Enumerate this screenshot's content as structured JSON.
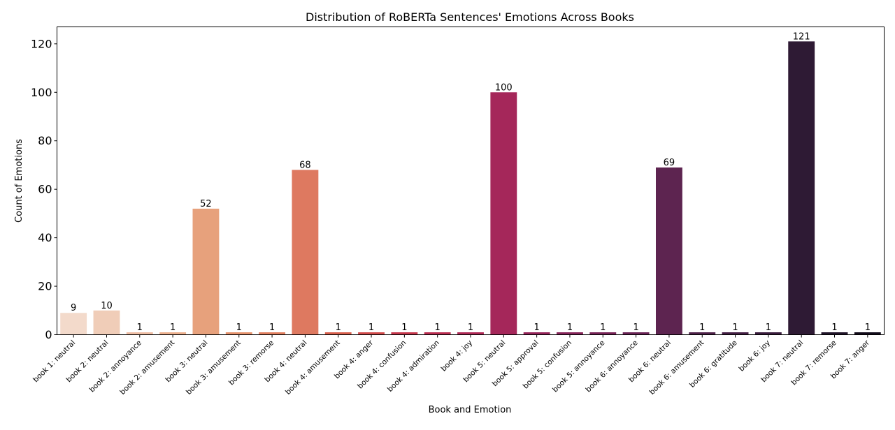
{
  "chart_data": {
    "type": "bar",
    "title": "Distribution of RoBERTa Sentences' Emotions Across Books",
    "xlabel": "Book and Emotion",
    "ylabel": "Count of Emotions",
    "ylim": [
      0,
      127
    ],
    "yticks": [
      0,
      20,
      40,
      60,
      80,
      100,
      120
    ],
    "grid": false,
    "categories": [
      "book 1: neutral",
      "book 2: neutral",
      "book 2: annoyance",
      "book 2: amusement",
      "book 3: neutral",
      "book 3: amusement",
      "book 3: remorse",
      "book 4: neutral",
      "book 4: amusement",
      "book 4: anger",
      "book 4: confusion",
      "book 4: admiration",
      "book 4: joy",
      "book 5: neutral",
      "book 5: approval",
      "book 5: confusion",
      "book 5: annoyance",
      "book 6: annoyance",
      "book 6: neutral",
      "book 6: amusement",
      "book 6: gratitude",
      "book 6: joy",
      "book 7: neutral",
      "book 7: remorse",
      "book 7: anger"
    ],
    "values": [
      9,
      10,
      1,
      1,
      52,
      1,
      1,
      68,
      1,
      1,
      1,
      1,
      1,
      100,
      1,
      1,
      1,
      1,
      69,
      1,
      1,
      1,
      121,
      1,
      1
    ],
    "colors": [
      "#f3dacb",
      "#f0cdb8",
      "#eebda3",
      "#ecb08e",
      "#e7a17c",
      "#e6936d",
      "#e18060",
      "#de7960",
      "#d8604d",
      "#d24c4c",
      "#c7384d",
      "#bb2e52",
      "#b02a57",
      "#a5275a",
      "#95255a",
      "#86255a",
      "#782458",
      "#6b2456",
      "#5d2450",
      "#4f2249",
      "#441f44",
      "#3a1c3d",
      "#2e1a34",
      "#21152a",
      "#120b1a"
    ]
  }
}
